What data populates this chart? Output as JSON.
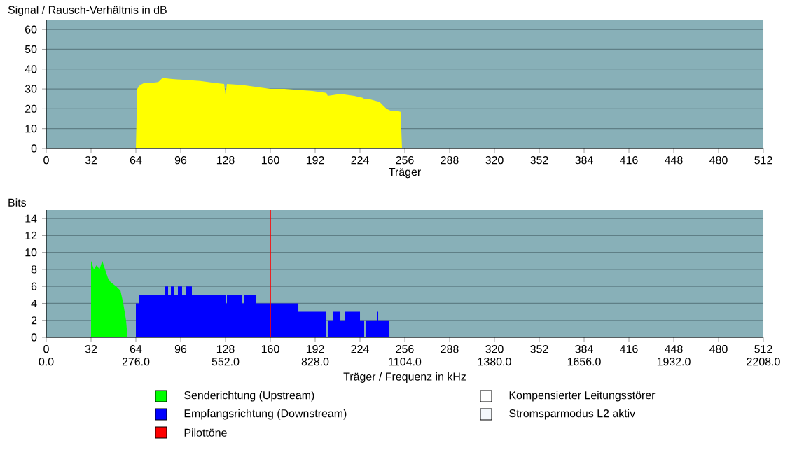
{
  "chart_data": [
    {
      "type": "area",
      "ylabel": "Signal / Rausch-Verhältnis in dB",
      "xlabel": "Träger",
      "color": "#ffff00",
      "x": [
        64,
        65,
        67,
        70,
        75,
        80,
        83,
        90,
        100,
        110,
        120,
        127,
        128,
        129,
        140,
        150,
        160,
        161,
        170,
        180,
        190,
        200,
        201,
        210,
        220,
        226,
        227,
        230,
        235,
        238,
        240,
        243,
        246,
        250,
        253,
        254
      ],
      "values": [
        0,
        30,
        32,
        33,
        33,
        33.5,
        35.5,
        35,
        34.5,
        34,
        33,
        32.5,
        27,
        32.5,
        32,
        31,
        30,
        30,
        30,
        29.5,
        29,
        28,
        26.5,
        27.5,
        26.5,
        25.5,
        25,
        25,
        24,
        23.5,
        22,
        20,
        19,
        19,
        18.5,
        0
      ],
      "xlim": [
        0,
        512
      ],
      "xticks": [
        0,
        32,
        64,
        96,
        128,
        160,
        192,
        224,
        256,
        288,
        320,
        352,
        384,
        416,
        448,
        480,
        512
      ],
      "ylim": [
        0,
        65
      ],
      "yticks": [
        0,
        10,
        20,
        30,
        40,
        50,
        60
      ],
      "grid": "y"
    },
    {
      "type": "area",
      "ylabel": "Bits",
      "xlabel": "Träger / Frequenz in kHz",
      "legend": "bottom",
      "series": [
        {
          "name": "Senderichtung (Upstream)",
          "color": "#00ff00",
          "x": [
            32,
            32,
            34,
            36,
            38,
            40,
            42,
            44,
            46,
            50,
            53,
            55,
            57,
            58
          ],
          "values": [
            0,
            9,
            8,
            8.5,
            8,
            9,
            8,
            7,
            6.5,
            6,
            5.5,
            4,
            2,
            0
          ]
        },
        {
          "name": "Empfangsrichtung (Downstream)",
          "color": "#0000ff",
          "x": [
            64,
            64,
            66,
            66,
            85,
            85,
            87,
            87,
            89,
            89,
            91,
            91,
            94,
            94,
            97,
            97,
            100,
            100,
            104,
            104,
            128,
            128,
            129,
            129,
            140,
            140,
            141,
            141,
            150,
            150,
            180,
            180,
            200,
            200,
            201,
            201,
            205,
            205,
            210,
            210,
            213,
            213,
            224,
            224,
            227,
            227,
            228,
            228,
            236,
            236,
            237,
            237,
            245,
            245
          ],
          "values": [
            0,
            4,
            4,
            5,
            5,
            6,
            6,
            5,
            5,
            6,
            6,
            5,
            5,
            6,
            6,
            5,
            5,
            6,
            6,
            5,
            5,
            4,
            4,
            5,
            5,
            4,
            4,
            5,
            5,
            4,
            4,
            3,
            3,
            0,
            0,
            2,
            2,
            3,
            3,
            2,
            2,
            3,
            3,
            2,
            2,
            0,
            0,
            2,
            2,
            3,
            3,
            2,
            2,
            0
          ]
        },
        {
          "name": "Kompensierter Leitungsstörer",
          "color": "#ffffff"
        },
        {
          "name": "Stromsparmodus L2 aktiv",
          "color": "#f4f8fc"
        }
      ],
      "ref_lines": [
        {
          "axis": "x",
          "value": 160,
          "label": "Pilottöne",
          "color": "#ff0000"
        }
      ],
      "xlim": [
        0,
        512
      ],
      "xticks": [
        0,
        32,
        64,
        96,
        128,
        160,
        192,
        224,
        256,
        288,
        320,
        352,
        384,
        416,
        448,
        480,
        512
      ],
      "x2lim": [
        0,
        2208
      ],
      "x2ticks": [
        {
          "value": 0,
          "label": "0.0"
        },
        {
          "value": 276,
          "label": "276.0"
        },
        {
          "value": 552,
          "label": "552.0"
        },
        {
          "value": 828,
          "label": "828.0"
        },
        {
          "value": 1104,
          "label": "1104.0"
        },
        {
          "value": 1380,
          "label": "1380.0"
        },
        {
          "value": 1656,
          "label": "1656.0"
        },
        {
          "value": 1932,
          "label": "1932.0"
        },
        {
          "value": 2208,
          "label": "2208.0"
        }
      ],
      "ylim": [
        0,
        15
      ],
      "yticks": [
        0,
        2,
        4,
        6,
        8,
        10,
        12,
        14
      ],
      "grid": "y"
    }
  ]
}
